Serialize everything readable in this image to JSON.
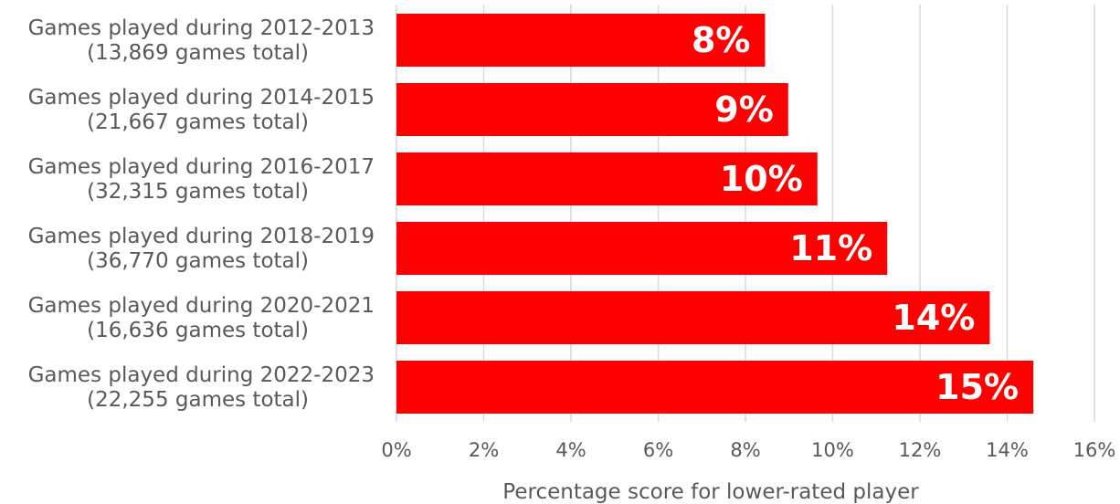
{
  "chart_data": {
    "type": "bar",
    "orientation": "horizontal",
    "categories": [
      [
        "Games played during 2012-2013",
        "(13,869 games total)"
      ],
      [
        "Games played during 2014-2015",
        "(21,667 games total)"
      ],
      [
        "Games played during 2016-2017",
        "(32,315 games total)"
      ],
      [
        "Games played during 2018-2019",
        "(36,770 games total)"
      ],
      [
        "Games played during 2020-2021",
        "(16,636 games total)"
      ],
      [
        "Games played during 2022-2023",
        "(22,255 games total)"
      ]
    ],
    "values": [
      8.45,
      8.98,
      9.65,
      11.25,
      13.6,
      14.6
    ],
    "data_labels": [
      "8%",
      "9%",
      "10%",
      "11%",
      "14%",
      "15%"
    ],
    "xlabel": "Percentage score for lower-rated player",
    "xlim": [
      0,
      16
    ],
    "xticks": [
      0,
      2,
      4,
      6,
      8,
      10,
      12,
      14,
      16
    ],
    "xtick_labels": [
      "0%",
      "2%",
      "4%",
      "6%",
      "8%",
      "10%",
      "12%",
      "14%",
      "16%"
    ],
    "grid": true,
    "bar_color": "#ff0000",
    "label_color": "#ffffff",
    "grid_color": "#d9d9d9"
  }
}
